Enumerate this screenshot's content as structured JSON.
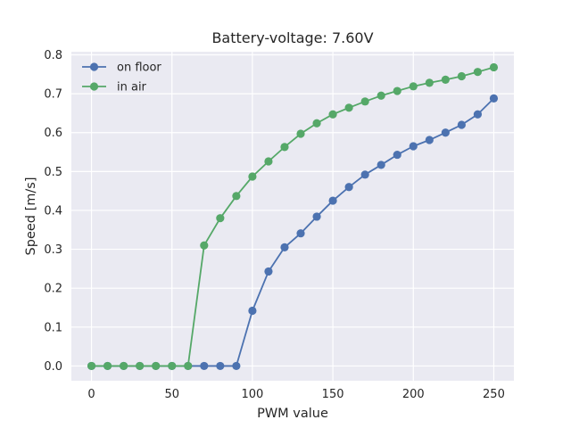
{
  "chart_data": {
    "type": "line",
    "title": "Battery-voltage: 7.60V",
    "xlabel": "PWM value",
    "ylabel": "Speed [m/s]",
    "xlim": [
      -12.5,
      262.5
    ],
    "ylim": [
      -0.038,
      0.808
    ],
    "xticks": [
      0,
      50,
      100,
      150,
      200,
      250
    ],
    "yticks": [
      0.0,
      0.1,
      0.2,
      0.3,
      0.4,
      0.5,
      0.6,
      0.7,
      0.8
    ],
    "x": [
      0,
      10,
      20,
      30,
      40,
      50,
      60,
      70,
      80,
      90,
      100,
      110,
      120,
      130,
      140,
      150,
      160,
      170,
      180,
      190,
      200,
      210,
      220,
      230,
      240,
      250
    ],
    "series": [
      {
        "name": "on floor",
        "color": "#4c72b0",
        "values": [
          0,
          0,
          0,
          0,
          0,
          0,
          0,
          0,
          0,
          0,
          0.142,
          0.243,
          0.305,
          0.341,
          0.384,
          0.425,
          0.46,
          0.492,
          0.517,
          0.543,
          0.565,
          0.581,
          0.6,
          0.62,
          0.647,
          0.688
        ]
      },
      {
        "name": "in air",
        "color": "#55a868",
        "values": [
          0,
          0,
          0,
          0,
          0,
          0,
          0,
          0.31,
          0.38,
          0.437,
          0.487,
          0.526,
          0.563,
          0.597,
          0.624,
          0.647,
          0.664,
          0.68,
          0.695,
          0.707,
          0.719,
          0.728,
          0.736,
          0.745,
          0.756,
          0.768
        ]
      }
    ],
    "grid": true,
    "legend": "top-left"
  }
}
